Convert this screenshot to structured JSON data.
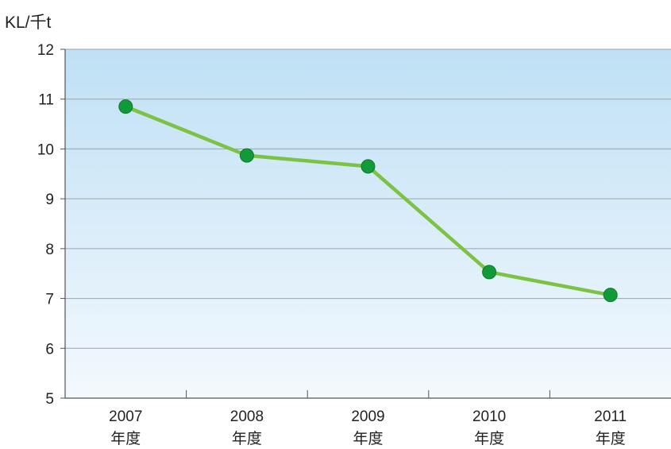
{
  "chart_data": {
    "type": "line",
    "ylabel": "KL/千t",
    "xlabel": "",
    "categories": [
      {
        "year": "2007",
        "unit": "年度"
      },
      {
        "year": "2008",
        "unit": "年度"
      },
      {
        "year": "2009",
        "unit": "年度"
      },
      {
        "year": "2010",
        "unit": "年度"
      },
      {
        "year": "2011",
        "unit": "年度"
      }
    ],
    "values": [
      10.85,
      9.87,
      9.65,
      7.53,
      7.07
    ],
    "ylim": [
      5,
      12
    ],
    "yticks": [
      "5",
      "6",
      "7",
      "8",
      "9",
      "10",
      "11",
      "12"
    ],
    "grid": true,
    "colors": {
      "line": "#7cc243",
      "marker": "#129a3a",
      "plot_top": "#bfe0f5",
      "plot_bottom": "#f4f9fd",
      "grid": "#9aa4ae"
    }
  }
}
